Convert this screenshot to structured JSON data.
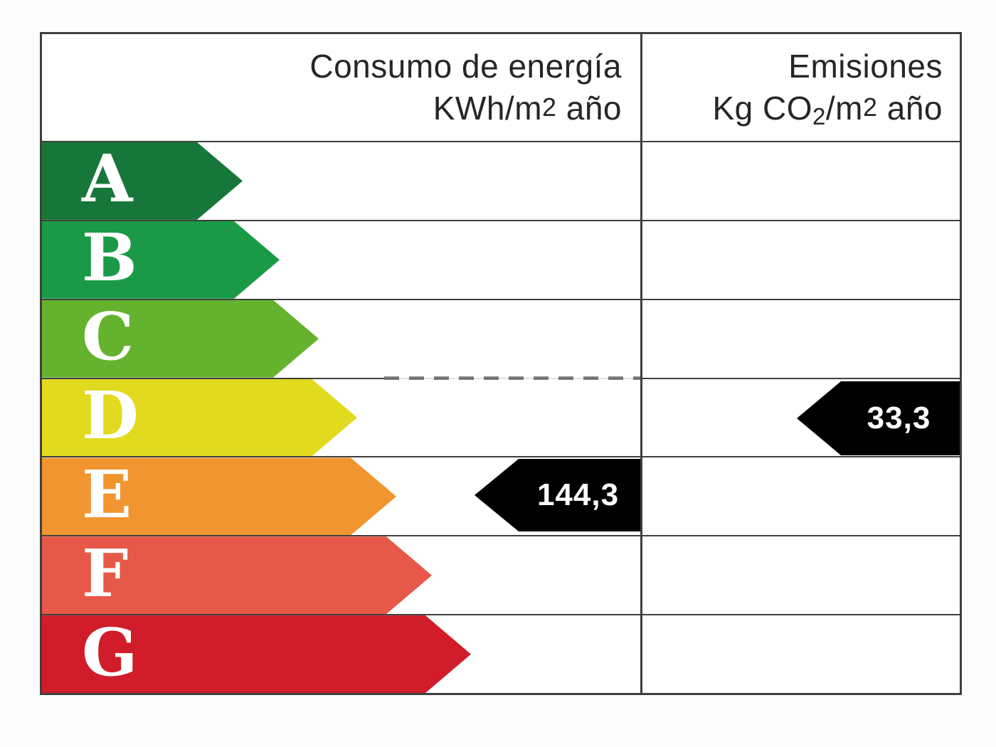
{
  "table": {
    "border_color": "#3f3f3f",
    "header": {
      "consumption": {
        "line1": "Consumo de energía",
        "line2_main": "KWh/m",
        "line2_exp": "2",
        "line2_tail": " año"
      },
      "emissions": {
        "line1": "Emisiones",
        "line2_pre": "Kg CO",
        "line2_sub": "2",
        "line2_mid": "/m",
        "line2_exp": "2",
        "line2_tail": " año"
      }
    },
    "ratings": [
      {
        "letter": "A",
        "color": "#17773a",
        "arrow_width": 282
      },
      {
        "letter": "B",
        "color": "#1a9a46",
        "arrow_width": 334
      },
      {
        "letter": "C",
        "color": "#64b22d",
        "arrow_width": 389
      },
      {
        "letter": "D",
        "color": "#e1da1f",
        "arrow_width": 443
      },
      {
        "letter": "E",
        "color": "#f0952f",
        "arrow_width": 498
      },
      {
        "letter": "F",
        "color": "#e65847",
        "arrow_width": 548
      },
      {
        "letter": "G",
        "color": "#d11c29",
        "arrow_width": 603
      }
    ],
    "values": {
      "consumption": "144,3",
      "emissions": "33,3",
      "arrow_color": "#000000",
      "text_color": "#ffffff"
    }
  },
  "chart_data": {
    "type": "table",
    "columns": [
      "Consumo de energía KWh/m2 año",
      "Emisiones Kg CO2/m2 año"
    ],
    "scale": [
      "A",
      "B",
      "C",
      "D",
      "E",
      "F",
      "G"
    ],
    "scale_colors": [
      "#17773a",
      "#1a9a46",
      "#64b22d",
      "#e1da1f",
      "#f0952f",
      "#e65847",
      "#d11c29"
    ],
    "consumption": {
      "value": 144.3,
      "display": "144,3",
      "rating_row": "E"
    },
    "emissions": {
      "value": 33.3,
      "display": "33,3",
      "rating_row": "D"
    }
  }
}
